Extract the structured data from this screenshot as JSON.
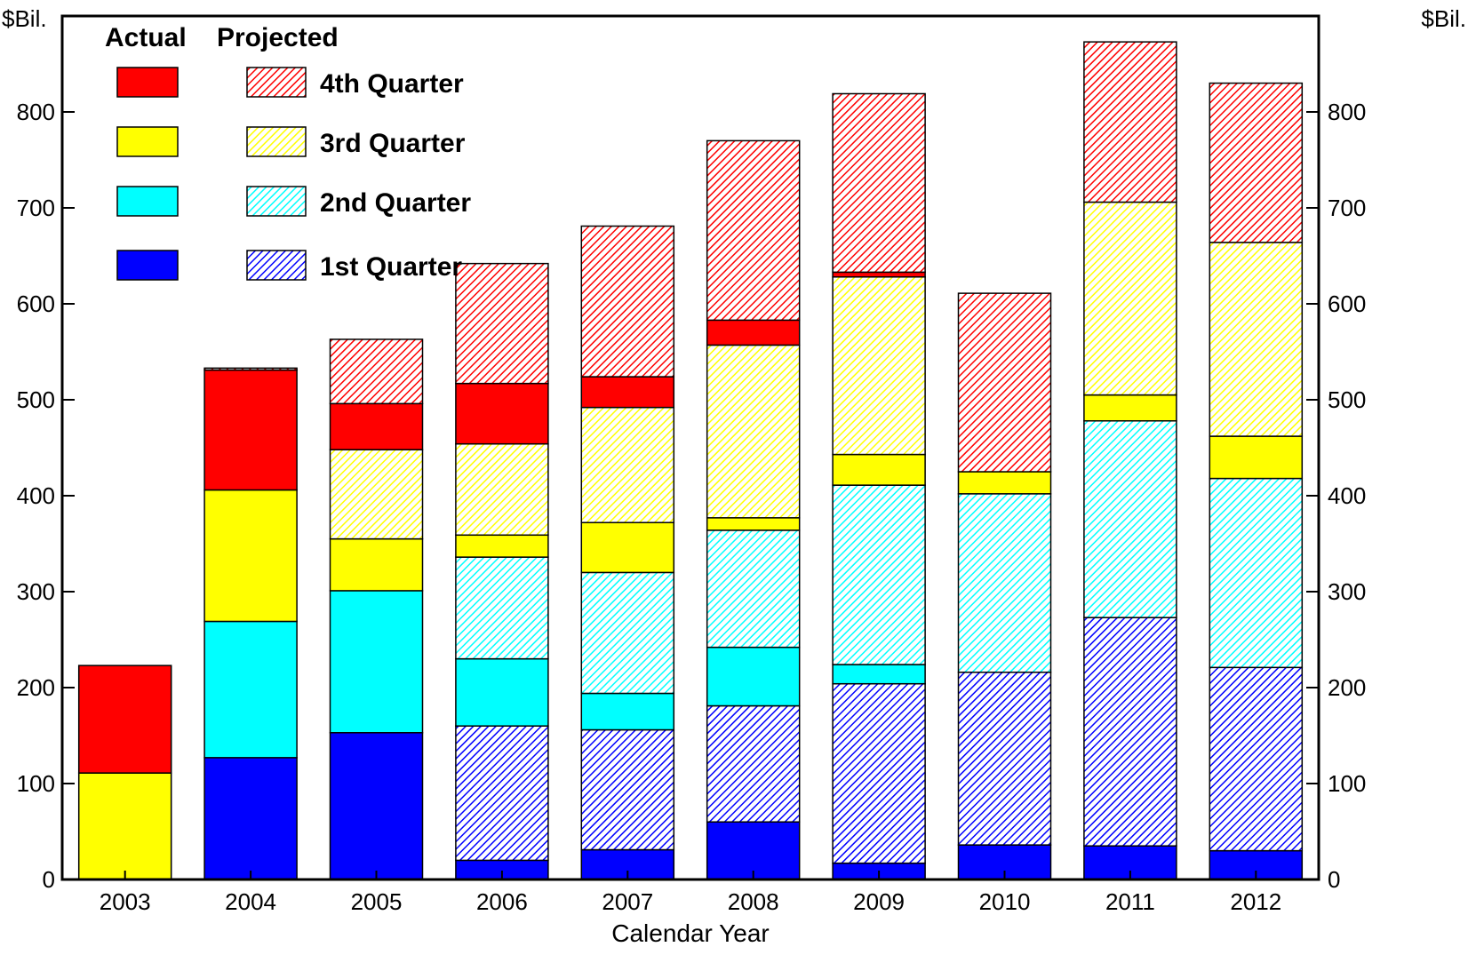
{
  "chart_data": {
    "type": "bar",
    "stacked": true,
    "title": "",
    "xlabel": "Calendar Year",
    "ylabel_left": "$Bil.",
    "ylabel_right": "$Bil.",
    "ylim": [
      0,
      900
    ],
    "yticks": [
      0,
      100,
      200,
      300,
      400,
      500,
      600,
      700,
      800
    ],
    "grid": false,
    "legend": {
      "placement": "top-left",
      "column_headers": [
        "Actual",
        "Projected"
      ]
    },
    "categories": [
      "2003",
      "2004",
      "2005",
      "2006",
      "2007",
      "2008",
      "2009",
      "2010",
      "2011",
      "2012"
    ],
    "series": [
      {
        "name": "1st Quarter",
        "color": "#0000ff",
        "actual": [
          0,
          127,
          153,
          20,
          31,
          60,
          17,
          36,
          35,
          30
        ],
        "projected": [
          0,
          0,
          0,
          140,
          125,
          121,
          187,
          180,
          238,
          191
        ]
      },
      {
        "name": "2nd Quarter",
        "color": "#00ffff",
        "actual": [
          0,
          142,
          148,
          70,
          38,
          61,
          20,
          0,
          0,
          0
        ],
        "projected": [
          0,
          0,
          0,
          106,
          126,
          122,
          187,
          186,
          205,
          197
        ]
      },
      {
        "name": "3rd Quarter",
        "color": "#ffff00",
        "actual": [
          111,
          137,
          54,
          23,
          52,
          13,
          32,
          23,
          27,
          44
        ],
        "projected": [
          0,
          0,
          93,
          95,
          120,
          180,
          185,
          0,
          201,
          202
        ]
      },
      {
        "name": "4th Quarter",
        "color": "#ff0000",
        "actual": [
          112,
          125,
          48,
          63,
          32,
          26,
          5,
          0,
          0,
          0
        ],
        "projected": [
          0,
          2,
          67,
          125,
          157,
          187,
          186,
          186,
          167,
          166
        ]
      }
    ]
  }
}
